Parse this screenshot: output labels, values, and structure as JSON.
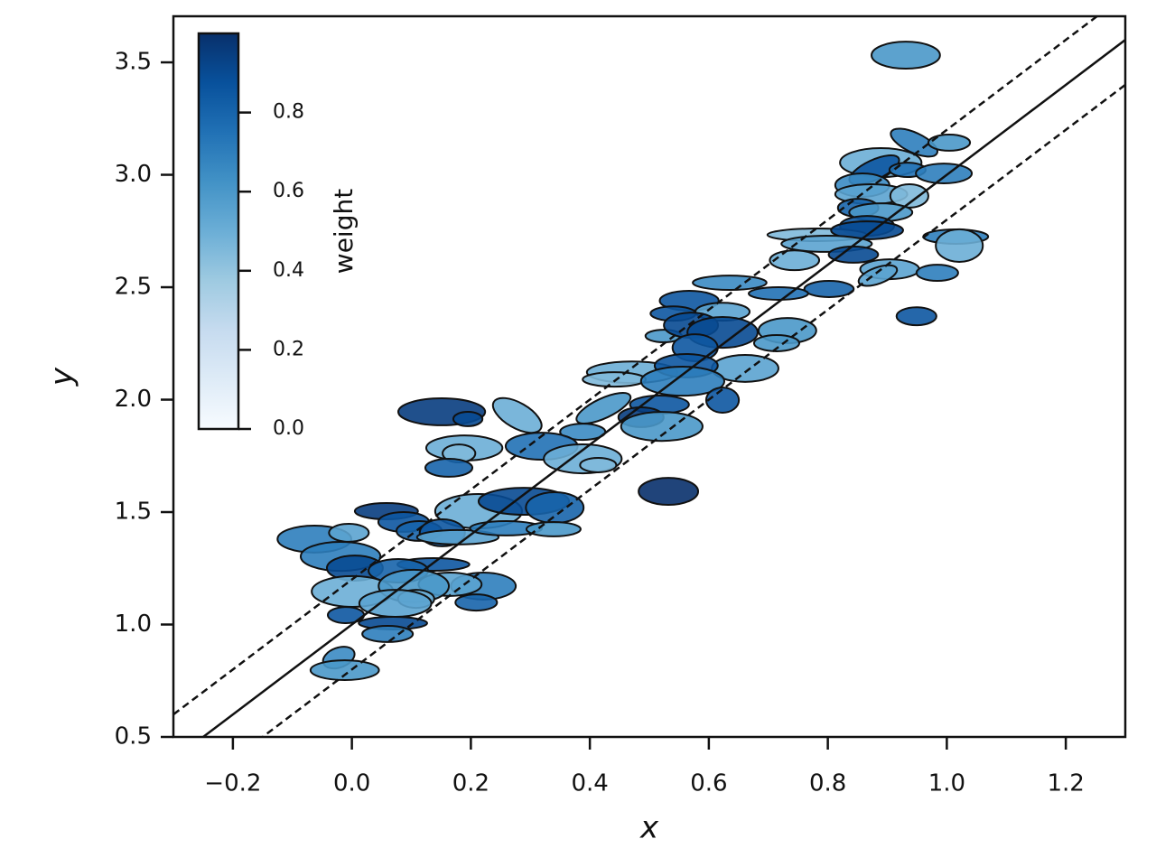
{
  "chart_data": {
    "type": "ellipse",
    "xlabel": "x",
    "ylabel": "y",
    "xlim": [
      -0.3,
      1.3
    ],
    "ylim": [
      0.5,
      3.705
    ],
    "xticks": [
      {
        "value": -0.2,
        "label": "−0.2"
      },
      {
        "value": 0,
        "label": "0.0"
      },
      0.2,
      0.4,
      0.6,
      0.8,
      {
        "value": 1,
        "label": "1.0"
      },
      1.2
    ],
    "yticks": [
      0.5,
      {
        "value": 1,
        "label": "1.0"
      },
      1.5,
      {
        "value": 2,
        "label": "2.0"
      },
      2.5,
      {
        "value": 3,
        "label": "3.0"
      },
      3.5
    ],
    "x": [
      0.931,
      0.945,
      1.004,
      0.889,
      0.878,
      0.934,
      0.995,
      0.858,
      0.873,
      0.937,
      0.851,
      0.889,
      0.866,
      0.782,
      0.866,
      1.015,
      1.021,
      0.798,
      0.843,
      0.744,
      0.904,
      0.984,
      0.884,
      0.802,
      0.635,
      0.717,
      0.567,
      0.623,
      0.54,
      0.524,
      0.57,
      0.623,
      0.949,
      0.732,
      0.714,
      0.577,
      0.661,
      0.471,
      0.562,
      0.441,
      0.423,
      0.556,
      0.517,
      0.623,
      0.486,
      0.521,
      0.151,
      0.195,
      0.278,
      0.388,
      0.189,
      0.18,
      0.163,
      0.319,
      0.388,
      0.414,
      0.532,
      0.058,
      0.087,
      0.213,
      0.289,
      0.341,
      0.113,
      0.152,
      0.178,
      0.259,
      0.339,
      -0.063,
      -0.005,
      -0.019,
      0.005,
      0.137,
      0.078,
      0.221,
      0.165,
      0.001,
      0.104,
      0.108,
      0.209,
      0.073,
      -0.01,
      0.069,
      0.06,
      -0.022,
      -0.012
    ],
    "y": [
      3.532,
      3.143,
      3.143,
      3.054,
      3.022,
      3.022,
      3.006,
      2.954,
      2.914,
      2.906,
      2.853,
      2.833,
      2.773,
      2.733,
      2.753,
      2.725,
      2.685,
      2.693,
      2.645,
      2.62,
      2.58,
      2.564,
      2.552,
      2.492,
      2.52,
      2.472,
      2.44,
      2.391,
      2.383,
      2.283,
      2.331,
      2.299,
      2.371,
      2.307,
      2.251,
      2.231,
      2.139,
      2.122,
      2.151,
      2.09,
      1.962,
      2.082,
      1.978,
      1.998,
      1.922,
      1.881,
      1.946,
      1.914,
      1.93,
      1.857,
      1.785,
      1.761,
      1.697,
      1.793,
      1.737,
      1.709,
      1.592,
      1.504,
      1.456,
      1.504,
      1.548,
      1.52,
      1.416,
      1.408,
      1.388,
      1.428,
      1.424,
      1.38,
      1.408,
      1.303,
      1.251,
      1.267,
      1.239,
      1.171,
      1.179,
      1.147,
      1.171,
      1.114,
      1.098,
      1.094,
      1.042,
      1.006,
      0.958,
      0.853,
      0.797
    ],
    "width": [
      0.115,
      0.085,
      0.07,
      0.137,
      0.091,
      0.061,
      0.094,
      0.091,
      0.121,
      0.064,
      0.068,
      0.106,
      0.091,
      0.167,
      0.121,
      0.109,
      0.079,
      0.152,
      0.083,
      0.083,
      0.099,
      0.07,
      0.068,
      0.083,
      0.124,
      0.1,
      0.099,
      0.091,
      0.076,
      0.061,
      0.091,
      0.118,
      0.067,
      0.097,
      0.076,
      0.076,
      0.112,
      0.152,
      0.106,
      0.106,
      0.099,
      0.14,
      0.099,
      0.055,
      0.076,
      0.137,
      0.146,
      0.049,
      0.091,
      0.076,
      0.128,
      0.055,
      0.079,
      0.121,
      0.131,
      0.061,
      0.1,
      0.106,
      0.085,
      0.146,
      0.152,
      0.097,
      0.076,
      0.076,
      0.137,
      0.121,
      0.091,
      0.124,
      0.067,
      0.134,
      0.094,
      0.121,
      0.1,
      0.109,
      0.106,
      0.137,
      0.118,
      0.061,
      0.07,
      0.121,
      0.061,
      0.115,
      0.085,
      0.055,
      0.115
    ],
    "height": [
      0.12,
      0.088,
      0.072,
      0.129,
      0.088,
      0.064,
      0.088,
      0.104,
      0.088,
      0.104,
      0.08,
      0.08,
      0.088,
      0.056,
      0.08,
      0.064,
      0.145,
      0.072,
      0.072,
      0.088,
      0.088,
      0.072,
      0.072,
      0.072,
      0.064,
      0.056,
      0.088,
      0.08,
      0.064,
      0.056,
      0.112,
      0.137,
      0.08,
      0.112,
      0.072,
      0.12,
      0.12,
      0.096,
      0.104,
      0.064,
      0.088,
      0.129,
      0.08,
      0.112,
      0.088,
      0.129,
      0.12,
      0.064,
      0.112,
      0.072,
      0.112,
      0.08,
      0.08,
      0.12,
      0.129,
      0.064,
      0.12,
      0.072,
      0.088,
      0.153,
      0.12,
      0.137,
      0.088,
      0.12,
      0.064,
      0.064,
      0.064,
      0.12,
      0.08,
      0.129,
      0.112,
      0.056,
      0.104,
      0.12,
      0.104,
      0.137,
      0.145,
      0.08,
      0.072,
      0.12,
      0.072,
      0.056,
      0.072,
      0.088,
      0.088
    ],
    "angle": [
      0,
      -25,
      0,
      0,
      25,
      0,
      0,
      0,
      0,
      0,
      0,
      0,
      0,
      0,
      0,
      0,
      0,
      0,
      0,
      0,
      0,
      0,
      20,
      0,
      0,
      0,
      0,
      0,
      0,
      0,
      0,
      0,
      0,
      0,
      0,
      0,
      0,
      0,
      0,
      0,
      25,
      0,
      0,
      0,
      0,
      0,
      0,
      0,
      -30,
      0,
      0,
      0,
      0,
      0,
      0,
      0,
      0,
      0,
      0,
      0,
      0,
      0,
      0,
      0,
      0,
      0,
      0,
      0,
      0,
      0,
      0,
      0,
      0,
      0,
      0,
      0,
      0,
      0,
      0,
      0,
      0,
      0,
      0,
      20,
      0
    ],
    "weight": [
      0.6,
      0.7,
      0.6,
      0.5,
      0.85,
      0.75,
      0.7,
      0.65,
      0.55,
      0.45,
      0.8,
      0.6,
      0.85,
      0.45,
      0.9,
      0.7,
      0.5,
      0.55,
      0.9,
      0.5,
      0.55,
      0.7,
      0.55,
      0.8,
      0.65,
      0.75,
      0.85,
      0.55,
      0.85,
      0.6,
      0.9,
      0.9,
      0.85,
      0.6,
      0.6,
      0.85,
      0.55,
      0.5,
      0.85,
      0.45,
      0.6,
      0.7,
      0.85,
      0.85,
      0.95,
      0.6,
      0.95,
      0.9,
      0.5,
      0.65,
      0.5,
      0.45,
      0.8,
      0.75,
      0.5,
      0.45,
      1.0,
      0.95,
      0.85,
      0.5,
      0.9,
      0.8,
      0.8,
      0.85,
      0.55,
      0.7,
      0.6,
      0.7,
      0.55,
      0.7,
      0.9,
      0.85,
      0.8,
      0.7,
      0.55,
      0.5,
      0.6,
      0.5,
      0.8,
      0.55,
      0.85,
      0.9,
      0.7,
      0.65,
      0.6
    ],
    "lines": [
      {
        "slope": 2,
        "intercept": 1,
        "dashed": false
      },
      {
        "slope": 2,
        "intercept": 1.2,
        "dashed": true
      },
      {
        "slope": 2,
        "intercept": 0.8,
        "dashed": true
      }
    ],
    "colorbar": {
      "label": "weight",
      "lim": [
        0,
        1
      ],
      "ticks": [
        {
          "value": 0,
          "label": "0.0"
        },
        0.2,
        0.4,
        0.6,
        0.8
      ],
      "colormap": [
        "#f7fbff",
        "#deebf7",
        "#c6dbef",
        "#9ecae1",
        "#6baed6",
        "#4292c6",
        "#2171b5",
        "#08519c",
        "#08306b"
      ]
    }
  }
}
